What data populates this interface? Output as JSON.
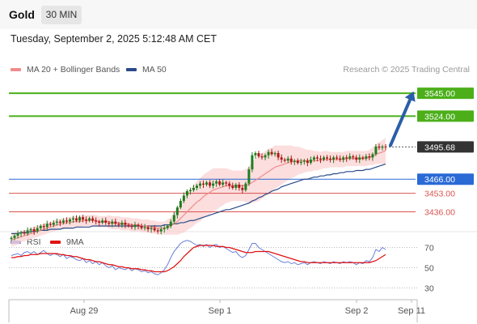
{
  "header": {
    "instrument": "Gold",
    "timeframe": "30 MIN"
  },
  "datetime": "Tuesday, September 2, 2025 5:12:48 AM CET",
  "legend": {
    "bollinger": {
      "label": "MA 20 + Bollinger Bands",
      "color": "#f08c8c"
    },
    "ma50": {
      "label": "MA 50",
      "color": "#2a4a8a"
    },
    "rsi": {
      "label": "RSI",
      "color": "#6a7fd6"
    },
    "rsi_ma": {
      "label": "9MA",
      "color": "#e01010"
    }
  },
  "credit": "Research © 2025 Trading Central",
  "chart_data": [
    {
      "type": "candlestick",
      "title": "",
      "x_ticks": [
        "Aug 29",
        "Sep 1",
        "Sep 2",
        "Sep 11"
      ],
      "ylim": [
        3420,
        3560
      ],
      "levels": [
        {
          "label": "3545.00",
          "value": 3545.0,
          "kind": "resistance",
          "color": "#4caf1a"
        },
        {
          "label": "3524.00",
          "value": 3524.0,
          "kind": "resistance",
          "color": "#4caf1a"
        },
        {
          "label": "3495.68",
          "value": 3495.68,
          "kind": "last-price",
          "color": "#333333"
        },
        {
          "label": "3466.00",
          "value": 3466.0,
          "kind": "pivot",
          "color": "#2a6ad6"
        },
        {
          "label": "3453.00",
          "value": 3453.0,
          "kind": "support",
          "color": "#d9534f"
        },
        {
          "label": "3436.00",
          "value": 3436.0,
          "kind": "support",
          "color": "#d9534f"
        }
      ],
      "close": [
        3412,
        3414,
        3416,
        3417,
        3416,
        3419,
        3420,
        3418,
        3421,
        3423,
        3422,
        3425,
        3424,
        3426,
        3427,
        3426,
        3428,
        3427,
        3429,
        3430,
        3428,
        3431,
        3429,
        3428,
        3430,
        3428,
        3427,
        3426,
        3428,
        3426,
        3425,
        3427,
        3425,
        3424,
        3426,
        3424,
        3423,
        3422,
        3424,
        3423,
        3421,
        3422,
        3420,
        3421,
        3419,
        3418,
        3420,
        3421,
        3423,
        3427,
        3433,
        3440,
        3446,
        3451,
        3455,
        3456,
        3458,
        3460,
        3462,
        3461,
        3463,
        3460,
        3462,
        3464,
        3461,
        3463,
        3462,
        3460,
        3458,
        3461,
        3458,
        3456,
        3462,
        3475,
        3488,
        3490,
        3487,
        3486,
        3488,
        3491,
        3489,
        3490,
        3486,
        3484,
        3483,
        3485,
        3482,
        3483,
        3481,
        3482,
        3483,
        3481,
        3484,
        3486,
        3485,
        3484,
        3486,
        3485,
        3484,
        3486,
        3485,
        3484,
        3486,
        3485,
        3487,
        3486,
        3484,
        3486,
        3485,
        3487,
        3486,
        3489,
        3496,
        3495,
        3496,
        3495.68
      ],
      "ma20": [
        3410,
        3411,
        3412,
        3413,
        3414,
        3415,
        3416,
        3417,
        3418,
        3419,
        3420,
        3421,
        3422,
        3423,
        3424,
        3425,
        3425,
        3426,
        3426,
        3427,
        3427,
        3427,
        3428,
        3428,
        3428,
        3428,
        3428,
        3427,
        3427,
        3427,
        3427,
        3426,
        3426,
        3426,
        3425,
        3425,
        3425,
        3424,
        3424,
        3424,
        3423,
        3423,
        3423,
        3422,
        3422,
        3421,
        3421,
        3421,
        3422,
        3423,
        3425,
        3427,
        3430,
        3433,
        3436,
        3439,
        3442,
        3445,
        3447,
        3450,
        3452,
        3454,
        3456,
        3457,
        3458,
        3459,
        3460,
        3460,
        3460,
        3460,
        3460,
        3460,
        3460,
        3461,
        3463,
        3465,
        3467,
        3469,
        3471,
        3473,
        3475,
        3477,
        3478,
        3479,
        3480,
        3481,
        3482,
        3482,
        3483,
        3483,
        3483,
        3483,
        3483,
        3483,
        3483,
        3483,
        3484,
        3484,
        3484,
        3484,
        3484,
        3484,
        3484,
        3485,
        3485,
        3485,
        3485,
        3485,
        3485,
        3485,
        3486,
        3487,
        3489,
        3490,
        3491,
        3492
      ],
      "ma50": [
        3416,
        3416,
        3416,
        3417,
        3417,
        3417,
        3418,
        3418,
        3418,
        3419,
        3419,
        3419,
        3420,
        3420,
        3420,
        3420,
        3421,
        3421,
        3421,
        3421,
        3422,
        3422,
        3422,
        3422,
        3422,
        3423,
        3423,
        3423,
        3423,
        3423,
        3423,
        3423,
        3423,
        3423,
        3423,
        3423,
        3423,
        3423,
        3423,
        3423,
        3423,
        3423,
        3423,
        3423,
        3423,
        3423,
        3423,
        3424,
        3424,
        3424,
        3425,
        3425,
        3426,
        3426,
        3427,
        3428,
        3428,
        3429,
        3430,
        3431,
        3432,
        3433,
        3434,
        3435,
        3436,
        3437,
        3438,
        3438,
        3439,
        3440,
        3441,
        3442,
        3443,
        3444,
        3446,
        3447,
        3449,
        3450,
        3452,
        3453,
        3455,
        3456,
        3457,
        3459,
        3460,
        3461,
        3462,
        3463,
        3464,
        3465,
        3466,
        3466,
        3467,
        3468,
        3468,
        3469,
        3469,
        3470,
        3470,
        3471,
        3471,
        3472,
        3472,
        3473,
        3473,
        3473,
        3474,
        3474,
        3474,
        3475,
        3475,
        3476,
        3477,
        3478,
        3479,
        3480
      ],
      "band_width": [
        6,
        6,
        6,
        5,
        5,
        5,
        5,
        5,
        5,
        5,
        5,
        5,
        5,
        5,
        5,
        5,
        5,
        5,
        5,
        5,
        5,
        5,
        5,
        5,
        5,
        5,
        5,
        5,
        5,
        5,
        6,
        6,
        6,
        6,
        6,
        6,
        6,
        6,
        6,
        6,
        6,
        6,
        6,
        6,
        6,
        6,
        6,
        6,
        7,
        8,
        10,
        12,
        14,
        16,
        17,
        18,
        19,
        19,
        20,
        20,
        20,
        20,
        20,
        19,
        18,
        17,
        16,
        15,
        14,
        14,
        14,
        14,
        15,
        17,
        19,
        20,
        21,
        21,
        21,
        21,
        20,
        20,
        19,
        18,
        17,
        16,
        15,
        14,
        13,
        12,
        11,
        10,
        10,
        9,
        9,
        8,
        8,
        8,
        7,
        7,
        7,
        7,
        7,
        7,
        7,
        7,
        7,
        7,
        7,
        7,
        7,
        8,
        9,
        10,
        11,
        12
      ]
    },
    {
      "type": "line",
      "title": "",
      "ylim": [
        20,
        80
      ],
      "y_ticks": [
        70,
        50,
        30
      ],
      "levels": [
        70,
        50,
        30
      ],
      "series": [
        {
          "name": "RSI",
          "values": [
            62,
            63,
            64,
            62,
            65,
            66,
            64,
            66,
            63,
            65,
            67,
            64,
            62,
            64,
            63,
            61,
            63,
            59,
            61,
            60,
            58,
            57,
            59,
            55,
            57,
            54,
            56,
            53,
            55,
            52,
            50,
            52,
            48,
            50,
            49,
            48,
            50,
            47,
            49,
            48,
            46,
            47,
            45,
            46,
            44,
            43,
            45,
            48,
            53,
            60,
            66,
            70,
            74,
            76,
            77,
            76,
            74,
            72,
            73,
            71,
            73,
            70,
            72,
            73,
            70,
            71,
            69,
            67,
            65,
            66,
            62,
            60,
            62,
            68,
            74,
            74,
            70,
            68,
            66,
            64,
            62,
            60,
            58,
            56,
            55,
            56,
            54,
            55,
            53,
            54,
            55,
            53,
            55,
            56,
            55,
            54,
            56,
            55,
            54,
            56,
            55,
            54,
            56,
            55,
            56,
            55,
            53,
            55,
            54,
            57,
            56,
            60,
            68,
            66,
            70,
            68
          ]
        },
        {
          "name": "9MA",
          "values": [
            60,
            60,
            61,
            61,
            62,
            62,
            63,
            63,
            63,
            64,
            64,
            64,
            64,
            64,
            64,
            63,
            63,
            62,
            62,
            61,
            61,
            60,
            59,
            58,
            58,
            57,
            56,
            56,
            55,
            54,
            53,
            53,
            52,
            51,
            51,
            50,
            50,
            49,
            49,
            49,
            48,
            48,
            47,
            47,
            46,
            46,
            46,
            46,
            47,
            49,
            51,
            54,
            57,
            61,
            64,
            67,
            70,
            71,
            72,
            72,
            72,
            72,
            72,
            71,
            71,
            71,
            70,
            70,
            69,
            68,
            67,
            66,
            65,
            65,
            65,
            66,
            66,
            66,
            66,
            66,
            65,
            64,
            63,
            62,
            61,
            60,
            59,
            58,
            57,
            56,
            56,
            55,
            55,
            55,
            55,
            55,
            55,
            55,
            55,
            55,
            55,
            55,
            55,
            55,
            55,
            55,
            55,
            55,
            55,
            55,
            55,
            56,
            57,
            59,
            61,
            63
          ]
        }
      ]
    }
  ]
}
